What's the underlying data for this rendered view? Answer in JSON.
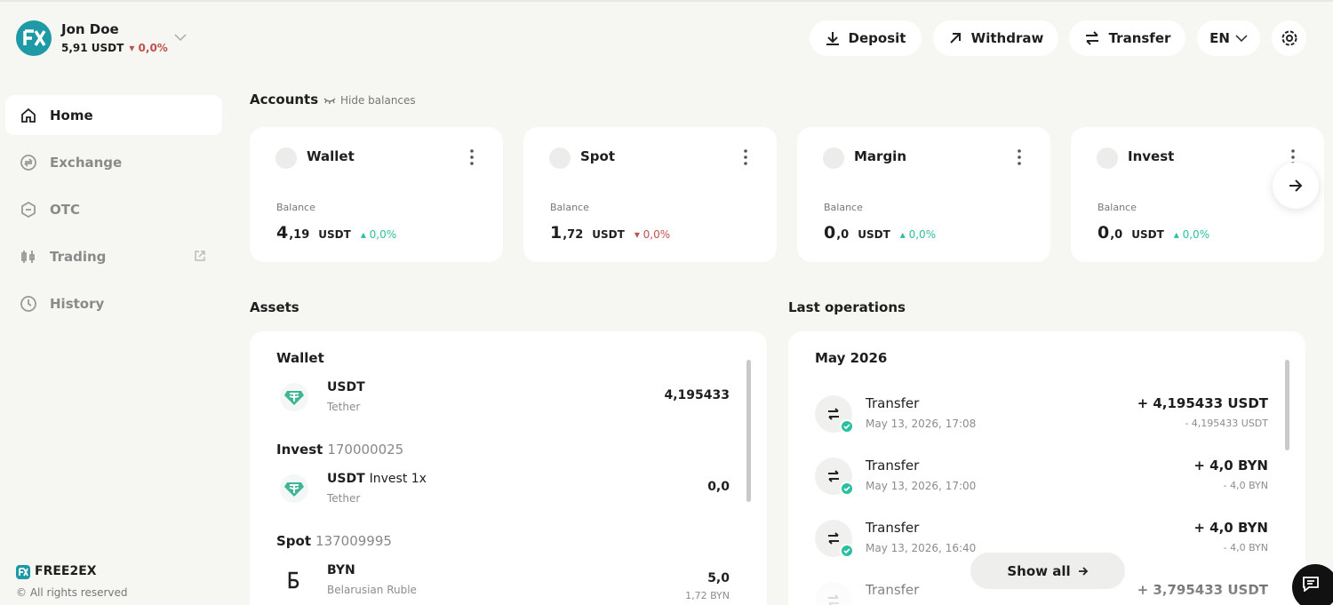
{
  "header": {
    "user_name": "Jon Doe",
    "user_balance": "5,91 USDT",
    "user_change": "0,0%",
    "user_trend": "down",
    "buttons": [
      "Deposit",
      "Withdraw",
      "Transfer"
    ],
    "language": "EN"
  },
  "sidebar": {
    "nav": [
      "Home",
      "Exchange",
      "OTC",
      "Trading",
      "History"
    ],
    "brand": "FREE2EX",
    "copyright": "© All rights reserved"
  },
  "accounts": {
    "title": "Accounts",
    "hide_balances": "Hide balances",
    "cards": [
      {
        "name": "Wallet",
        "balance_label": "Balance",
        "amount_whole": "4",
        "amount_fraction": ",19",
        "currency": "USDT",
        "change": "0,0%",
        "trend": "up"
      },
      {
        "name": "Spot",
        "balance_label": "Balance",
        "amount_whole": "1",
        "amount_fraction": ",72",
        "currency": "USDT",
        "change": "0,0%",
        "trend": "down"
      },
      {
        "name": "Margin",
        "balance_label": "Balance",
        "amount_whole": "0",
        "amount_fraction": ",0",
        "currency": "USDT",
        "change": "0,0%",
        "trend": "up"
      },
      {
        "name": "Invest",
        "balance_label": "Balance",
        "amount_whole": "0",
        "amount_fraction": ",0",
        "currency": "USDT",
        "change": "0,0%",
        "trend": "up"
      }
    ]
  },
  "assets": {
    "title": "Assets",
    "groups": [
      {
        "name": "Wallet",
        "items": [
          {
            "symbol": "USDT",
            "name": "Tether",
            "amount": "4,195433"
          }
        ]
      },
      {
        "name": "Invest",
        "account_id": "170000025",
        "items": [
          {
            "symbol": "USDT",
            "label": "Invest 1x",
            "name": "Tether",
            "amount": "0,0"
          }
        ]
      },
      {
        "name": "Spot",
        "account_id": "137009995",
        "items": [
          {
            "symbol": "BYN",
            "name": "Belarusian Ruble",
            "amount": "5,0",
            "sub_amount": "1,72 BYN"
          }
        ]
      }
    ]
  },
  "operations": {
    "title": "Last operations",
    "month": "May 2026",
    "show_all": "Show all",
    "items": [
      {
        "type": "Transfer",
        "date": "May 13, 2026, 17:08",
        "amount": "+ 4,195433 USDT",
        "sub_amount": "- 4,195433 USDT"
      },
      {
        "type": "Transfer",
        "date": "May 13, 2026, 17:00",
        "amount": "+ 4,0 BYN",
        "sub_amount": "- 4,0 BYN"
      },
      {
        "type": "Transfer",
        "date": "May 13, 2026, 16:40",
        "amount": "+ 4,0 BYN",
        "sub_amount": "- 4,0 BYN"
      },
      {
        "type": "Transfer",
        "amount": "+ 3,795433 USDT"
      }
    ]
  }
}
